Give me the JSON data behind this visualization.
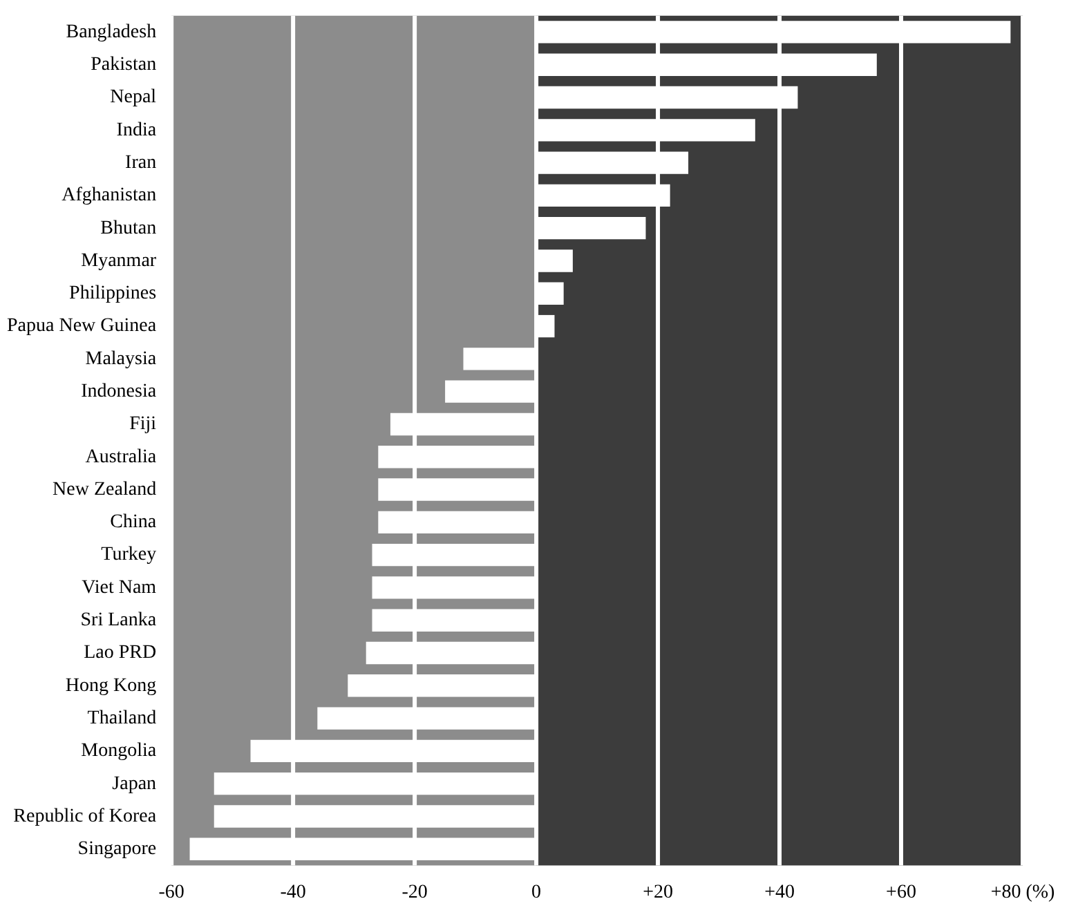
{
  "chart_data": {
    "type": "bar",
    "orientation": "horizontal",
    "categories": [
      "Bangladesh",
      "Pakistan",
      "Nepal",
      "India",
      "Iran",
      "Afghanistan",
      "Bhutan",
      "Myanmar",
      "Philippines",
      "Papua New Guinea",
      "Malaysia",
      "Indonesia",
      "Fiji",
      "Australia",
      "New Zealand",
      "China",
      "Turkey",
      "Viet Nam",
      "Sri Lanka",
      "Lao PRD",
      "Hong Kong",
      "Thailand",
      "Mongolia",
      "Japan",
      "Republic of Korea",
      "Singapore"
    ],
    "values": [
      78,
      56,
      43,
      36,
      25,
      22,
      18,
      6,
      4.5,
      3,
      -12,
      -15,
      -24,
      -26,
      -26,
      -26,
      -27,
      -27,
      -27,
      -28,
      -31,
      -36,
      -47,
      -53,
      -53,
      -57
    ],
    "color": "#ffffff",
    "xlim": [
      -60,
      80
    ],
    "xticks": [
      -60,
      -40,
      -20,
      0,
      {
        "value": 20,
        "label": "+20"
      },
      {
        "value": 40,
        "label": "+40"
      },
      {
        "value": 60,
        "label": "+60"
      },
      {
        "value": 80,
        "label": "+80 (%)"
      }
    ],
    "bands": [
      {
        "axis": "x",
        "from": -60,
        "to": 0,
        "color": "#8c8c8c"
      },
      {
        "axis": "x",
        "from": 0,
        "to": 80,
        "color": "#3c3c3c"
      }
    ],
    "grid": "x",
    "legend": false
  }
}
